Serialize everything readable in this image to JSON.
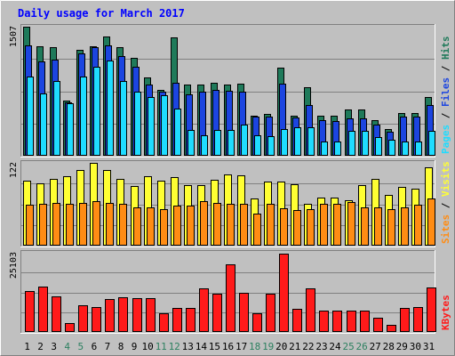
{
  "title": "Daily usage for March 2017",
  "colors": {
    "background": "#c0c0c0",
    "panel": "#c0c0c0",
    "title": "#0000ff",
    "weekend_label": "#2d8060",
    "weekday_label": "#000000",
    "hits": "#1f7a5a",
    "files": "#1c45e0",
    "pages": "#1fdcff",
    "visits": "#ffff33",
    "sites": "#ff8c14",
    "kbytes": "#ff1a1a"
  },
  "chart_data": [
    {
      "type": "bar",
      "title": "Daily usage for March 2017",
      "ymax_label": "1507",
      "ylim": [
        0,
        1507
      ],
      "grid": true,
      "legend": [
        {
          "name": "Pages",
          "color": "#1fdcff"
        },
        {
          "name": "Files",
          "color": "#1c45e0"
        },
        {
          "name": "Hits",
          "color": "#1f7a5a"
        }
      ],
      "categories": [
        "1",
        "2",
        "3",
        "4",
        "5",
        "6",
        "7",
        "8",
        "9",
        "10",
        "11",
        "12",
        "13",
        "14",
        "15",
        "16",
        "17",
        "18",
        "19",
        "20",
        "21",
        "22",
        "23",
        "24",
        "25",
        "26",
        "27",
        "28",
        "29",
        "30",
        "31"
      ],
      "series": [
        {
          "name": "Hits",
          "values": [
            1507,
            1276,
            1264,
            640,
            1241,
            1276,
            1392,
            1264,
            1148,
            919,
            764,
            1380,
            834,
            834,
            849,
            834,
            842,
            470,
            487,
            1032,
            469,
            804,
            470,
            470,
            540,
            540,
            419,
            316,
            504,
            504,
            688
          ]
        },
        {
          "name": "Files",
          "values": [
            1291,
            1104,
            1124,
            627,
            1197,
            1264,
            1287,
            1159,
            1035,
            835,
            746,
            853,
            718,
            749,
            768,
            757,
            749,
            459,
            453,
            840,
            446,
            589,
            412,
            407,
            436,
            436,
            359,
            284,
            454,
            454,
            589
          ]
        },
        {
          "name": "Pages",
          "values": [
            920,
            730,
            870,
            608,
            930,
            1038,
            1110,
            874,
            750,
            682,
            702,
            546,
            300,
            242,
            300,
            300,
            367,
            240,
            233,
            310,
            330,
            334,
            163,
            163,
            287,
            287,
            216,
            183,
            171,
            171,
            287
          ]
        }
      ]
    },
    {
      "type": "bar",
      "ymax_label": "122",
      "ylim": [
        0,
        122
      ],
      "grid": true,
      "legend": [
        {
          "name": "Sites",
          "color": "#ff8c14"
        },
        {
          "name": "Visits",
          "color": "#ffff33"
        }
      ],
      "categories": [
        "1",
        "2",
        "3",
        "4",
        "5",
        "6",
        "7",
        "8",
        "9",
        "10",
        "11",
        "12",
        "13",
        "14",
        "15",
        "16",
        "17",
        "18",
        "19",
        "20",
        "21",
        "22",
        "23",
        "24",
        "25",
        "26",
        "27",
        "28",
        "29",
        "30",
        "31"
      ],
      "series": [
        {
          "name": "Visits",
          "values": [
            96,
            92,
            98,
            102,
            112,
            122,
            112,
            98,
            88,
            102,
            96,
            101,
            89,
            89,
            97,
            105,
            103,
            70,
            95,
            94,
            90,
            62,
            71,
            71,
            67,
            89,
            98,
            75,
            87,
            84,
            115
          ]
        },
        {
          "name": "Sites",
          "values": [
            60,
            62,
            63,
            62,
            63,
            65,
            63,
            61,
            57,
            56,
            54,
            59,
            59,
            65,
            63,
            61,
            61,
            47,
            61,
            55,
            53,
            54,
            61,
            61,
            64,
            57,
            56,
            54,
            56,
            60,
            70
          ]
        }
      ]
    },
    {
      "type": "bar",
      "ymax_label": "25103",
      "ylim": [
        0,
        25103
      ],
      "grid": true,
      "legend": [
        {
          "name": "KBytes",
          "color": "#ff1a1a"
        }
      ],
      "categories": [
        "1",
        "2",
        "3",
        "4",
        "5",
        "6",
        "7",
        "8",
        "9",
        "10",
        "11",
        "12",
        "13",
        "14",
        "15",
        "16",
        "17",
        "18",
        "19",
        "20",
        "21",
        "22",
        "23",
        "24",
        "25",
        "26",
        "27",
        "28",
        "29",
        "30",
        "31"
      ],
      "series": [
        {
          "name": "KBytes",
          "values": [
            13100,
            14300,
            11200,
            2800,
            8400,
            8000,
            10500,
            10900,
            10800,
            10600,
            5800,
            7700,
            7700,
            13900,
            12100,
            21500,
            12400,
            5900,
            12200,
            24900,
            7400,
            13900,
            6800,
            6900,
            6900,
            6700,
            4400,
            2300,
            7500,
            7900,
            14000
          ]
        }
      ]
    }
  ],
  "day_labels": [
    {
      "label": "1",
      "weekend": false
    },
    {
      "label": "2",
      "weekend": false
    },
    {
      "label": "3",
      "weekend": false
    },
    {
      "label": "4",
      "weekend": true
    },
    {
      "label": "5",
      "weekend": true
    },
    {
      "label": "6",
      "weekend": false
    },
    {
      "label": "7",
      "weekend": false
    },
    {
      "label": "8",
      "weekend": false
    },
    {
      "label": "9",
      "weekend": false
    },
    {
      "label": "10",
      "weekend": false
    },
    {
      "label": "11",
      "weekend": true
    },
    {
      "label": "12",
      "weekend": true
    },
    {
      "label": "13",
      "weekend": false
    },
    {
      "label": "14",
      "weekend": false
    },
    {
      "label": "15",
      "weekend": false
    },
    {
      "label": "16",
      "weekend": false
    },
    {
      "label": "17",
      "weekend": false
    },
    {
      "label": "18",
      "weekend": true
    },
    {
      "label": "19",
      "weekend": true
    },
    {
      "label": "20",
      "weekend": false
    },
    {
      "label": "21",
      "weekend": false
    },
    {
      "label": "22",
      "weekend": false
    },
    {
      "label": "23",
      "weekend": false
    },
    {
      "label": "24",
      "weekend": false
    },
    {
      "label": "25",
      "weekend": true
    },
    {
      "label": "26",
      "weekend": true
    },
    {
      "label": "27",
      "weekend": false
    },
    {
      "label": "28",
      "weekend": false
    },
    {
      "label": "29",
      "weekend": false
    },
    {
      "label": "30",
      "weekend": false
    },
    {
      "label": "31",
      "weekend": false
    }
  ]
}
